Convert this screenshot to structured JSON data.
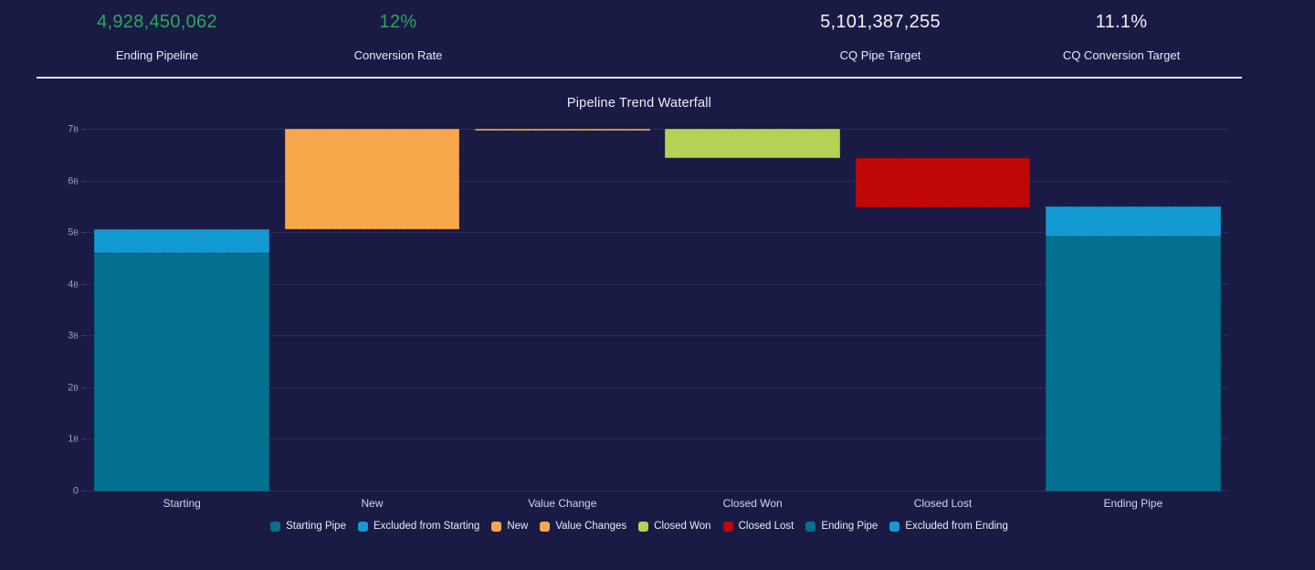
{
  "colors": {
    "background": "#1a1b45",
    "grid": "#2b2d5a",
    "divider": "#e7e9f2",
    "kpi_green": "#2aa75c",
    "kpi_white": "#f2f3f8",
    "starting_pipe_teal": "#04708f",
    "excluded_blue": "#149ad3",
    "new_orange": "#f9a74b",
    "value_changes_orange": "#f9a74b",
    "closed_won_green": "#b4d355",
    "closed_lost_red": "#c00606"
  },
  "kpis": [
    {
      "value": "4,928,450,062",
      "label": "Ending Pipeline"
    },
    {
      "value": "12%",
      "label": "Conversion Rate"
    },
    {
      "value": "5,101,387,255",
      "label": "CQ Pipe Target"
    },
    {
      "value": "11.1%",
      "label": "CQ Conversion Target"
    }
  ],
  "chart_data": {
    "type": "bar",
    "subtype": "waterfall",
    "title": "Pipeline Trend Waterfall",
    "unit": "billions",
    "ylim": [
      0,
      7.3
    ],
    "grid": true,
    "legend_position": "bottom",
    "yticks": [
      {
        "v": 0,
        "label": "0"
      },
      {
        "v": 1,
        "label": "1B"
      },
      {
        "v": 2,
        "label": "2B"
      },
      {
        "v": 3,
        "label": "3B"
      },
      {
        "v": 4,
        "label": "4B"
      },
      {
        "v": 5,
        "label": "5B"
      },
      {
        "v": 6,
        "label": "6B"
      },
      {
        "v": 7,
        "label": "7B"
      }
    ],
    "categories": [
      "Starting",
      "New",
      "Value Change",
      "Closed Won",
      "Closed Lost",
      "Ending Pipe"
    ],
    "bars": [
      {
        "category": "Starting",
        "segments": [
          {
            "series": "Starting Pipe",
            "from": 0,
            "to": 4.62,
            "color": "#04708f"
          },
          {
            "series": "Excluded from Starting",
            "from": 4.62,
            "to": 5.08,
            "color": "#149ad3"
          }
        ]
      },
      {
        "category": "New",
        "segments": [
          {
            "series": "New",
            "from": 5.08,
            "to": 7.01,
            "color": "#f9a74b"
          }
        ]
      },
      {
        "category": "Value Change",
        "segments": [
          {
            "series": "Value Changes",
            "from": 6.99,
            "to": 7.01,
            "color": "#f9a74b"
          }
        ]
      },
      {
        "category": "Closed Won",
        "segments": [
          {
            "series": "Closed Won",
            "from": 6.45,
            "to": 7.01,
            "color": "#b4d355"
          }
        ]
      },
      {
        "category": "Closed Lost",
        "segments": [
          {
            "series": "Closed Lost",
            "from": 5.5,
            "to": 6.45,
            "color": "#c00606"
          }
        ]
      },
      {
        "category": "Ending Pipe",
        "segments": [
          {
            "series": "Ending Pipe",
            "from": 0,
            "to": 4.93,
            "color": "#04708f"
          },
          {
            "series": "Excluded from Ending",
            "from": 4.93,
            "to": 5.52,
            "color": "#149ad3"
          }
        ]
      }
    ],
    "legend": [
      {
        "label": "Starting Pipe",
        "color": "#04708f"
      },
      {
        "label": "Excluded from Starting",
        "color": "#149ad3"
      },
      {
        "label": "New",
        "color": "#f9a74b"
      },
      {
        "label": "Value Changes",
        "color": "#f9a74b"
      },
      {
        "label": "Closed Won",
        "color": "#b4d355"
      },
      {
        "label": "Closed Lost",
        "color": "#c00606"
      },
      {
        "label": "Ending Pipe",
        "color": "#04708f"
      },
      {
        "label": "Excluded from Ending",
        "color": "#149ad3"
      }
    ]
  }
}
